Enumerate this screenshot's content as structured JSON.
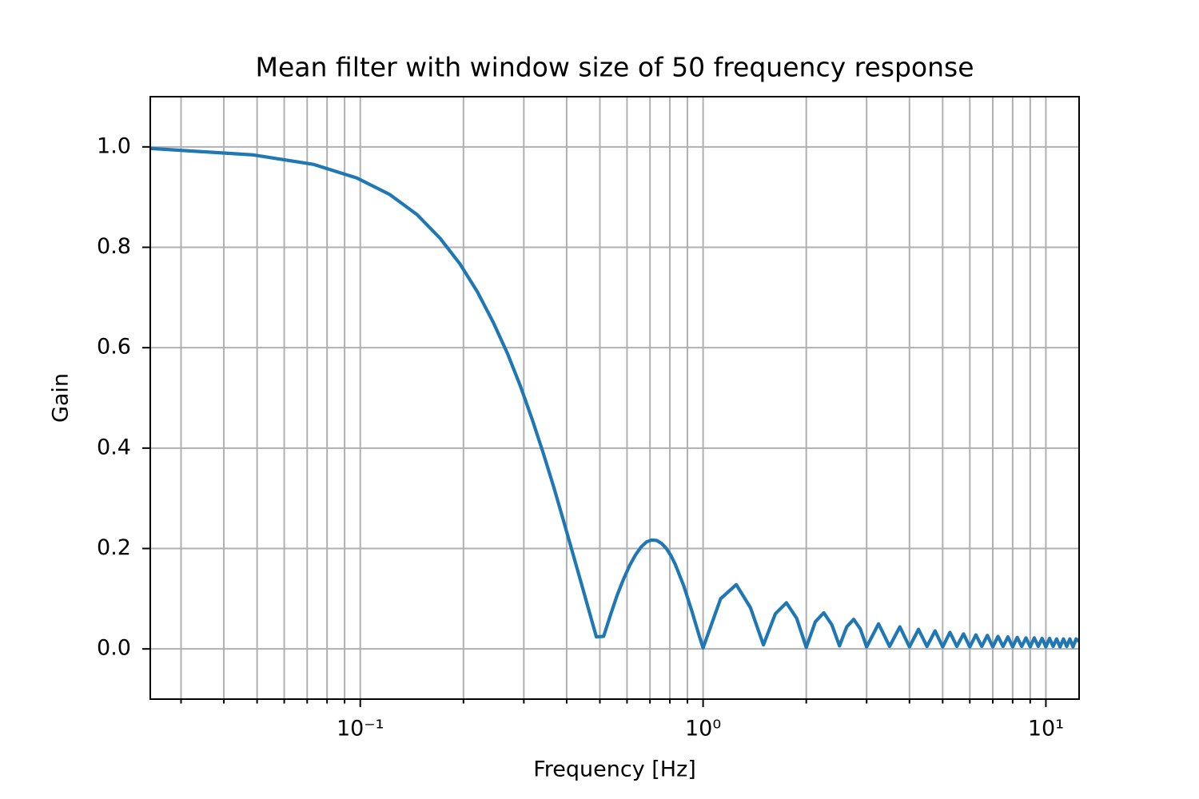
{
  "chart_data": {
    "type": "line",
    "title": "Mean filter with window size of 50 frequency response",
    "xlabel": "Frequency [Hz]",
    "ylabel": "Gain",
    "xscale": "log",
    "grid": true,
    "color": "#1f77b4",
    "xlim": [
      0.0244,
      12.5
    ],
    "ylim": [
      -0.1,
      1.1
    ],
    "xticks": [
      {
        "value": 0.1,
        "label": "10⁻¹"
      },
      {
        "value": 1,
        "label": "10⁰"
      },
      {
        "value": 10,
        "label": "10¹"
      }
    ],
    "xminorticks": [
      0.03,
      0.04,
      0.05,
      0.06,
      0.07,
      0.08,
      0.09,
      0.2,
      0.3,
      0.4,
      0.5,
      0.6,
      0.7,
      0.8,
      0.9,
      2,
      3,
      4,
      5,
      6,
      7,
      8,
      9
    ],
    "yticks": [
      {
        "value": 0,
        "label": "0.0"
      },
      0.2,
      0.4,
      0.6,
      0.8,
      {
        "value": 1,
        "label": "1.0"
      }
    ],
    "x": [
      0.0244,
      0.0488,
      0.0732,
      0.0977,
      0.122,
      0.1465,
      0.1709,
      0.1953,
      0.2197,
      0.2441,
      0.2686,
      0.293,
      0.3174,
      0.3418,
      0.3662,
      0.3906,
      0.415,
      0.4395,
      0.4639,
      0.4883,
      0.5127,
      0.5371,
      0.5615,
      0.586,
      0.6104,
      0.6348,
      0.6592,
      0.6836,
      0.708,
      0.7324,
      0.7568,
      0.7813,
      0.8057,
      0.8301,
      0.8789,
      0.9277,
      0.9766,
      1.0,
      1.125,
      1.25,
      1.375,
      1.5,
      1.625,
      1.75,
      1.875,
      2.0,
      2.125,
      2.25,
      2.375,
      2.5,
      2.625,
      2.75,
      2.875,
      3.0,
      3.25,
      3.5,
      3.75,
      4.0,
      4.25,
      4.5,
      4.75,
      5.0,
      5.25,
      5.5,
      5.75,
      6.0,
      6.25,
      6.5,
      6.75,
      7.0,
      7.25,
      7.5,
      7.75,
      8.0,
      8.25,
      8.5,
      8.75,
      9.0,
      9.25,
      9.5,
      9.75,
      10.0,
      10.25,
      10.5,
      10.75,
      11.0,
      11.25,
      11.5,
      11.75,
      12.0,
      12.25,
      12.5
    ],
    "values": [
      0.997,
      0.984,
      0.965,
      0.938,
      0.905,
      0.865,
      0.818,
      0.767,
      0.711,
      0.651,
      0.589,
      0.524,
      0.457,
      0.39,
      0.324,
      0.258,
      0.195,
      0.135,
      0.078,
      0.024,
      0.025,
      0.068,
      0.107,
      0.139,
      0.166,
      0.187,
      0.203,
      0.213,
      0.217,
      0.216,
      0.21,
      0.2,
      0.186,
      0.168,
      0.125,
      0.075,
      0.024,
      0.002,
      0.1,
      0.128,
      0.082,
      0.008,
      0.07,
      0.092,
      0.061,
      0.003,
      0.054,
      0.072,
      0.048,
      0.006,
      0.044,
      0.059,
      0.04,
      0.004,
      0.05,
      0.005,
      0.044,
      0.004,
      0.039,
      0.005,
      0.036,
      0.004,
      0.033,
      0.005,
      0.03,
      0.004,
      0.028,
      0.005,
      0.027,
      0.004,
      0.025,
      0.005,
      0.024,
      0.004,
      0.023,
      0.005,
      0.022,
      0.004,
      0.022,
      0.005,
      0.021,
      0.004,
      0.021,
      0.005,
      0.02,
      0.004,
      0.02,
      0.005,
      0.02,
      0.004,
      0.02,
      0.015
    ]
  }
}
